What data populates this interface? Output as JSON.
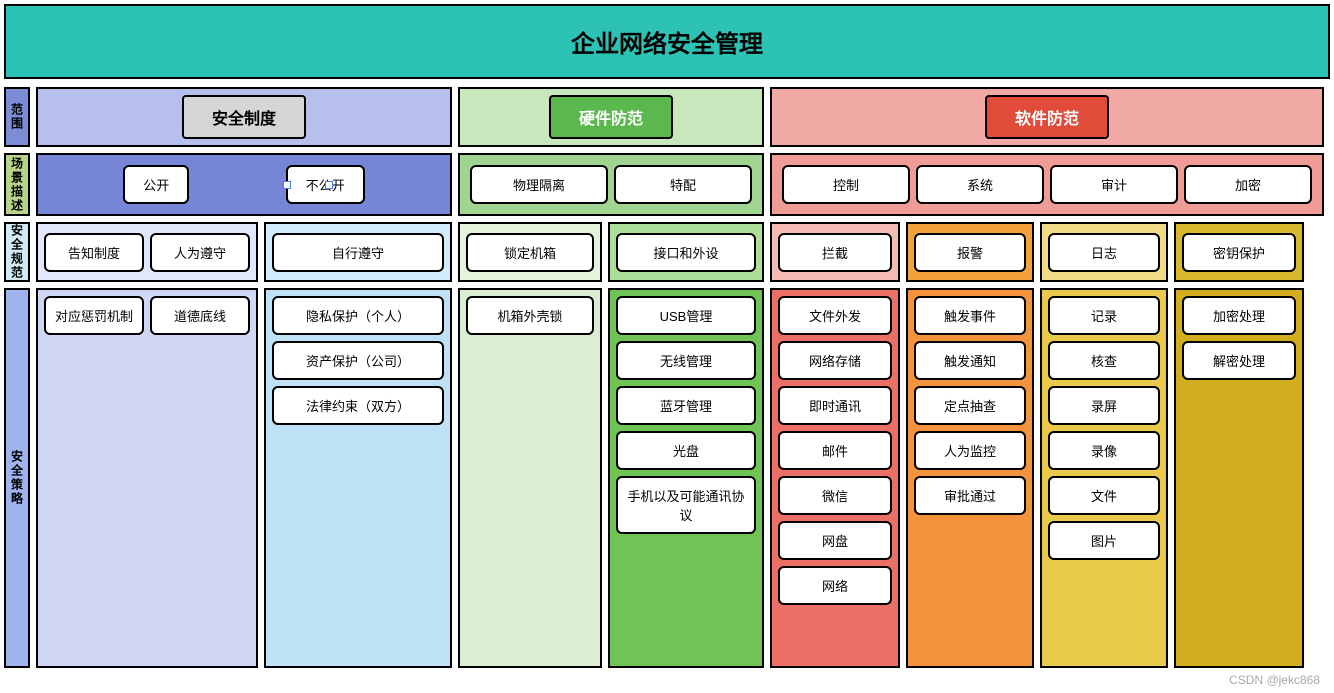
{
  "title": "企业网络安全管理",
  "watermark": "CSDN @jekc868",
  "colors": {
    "title_bg": "#2cc2b4",
    "side_scope": "#7c8dd6",
    "side_scene": "#b7d48a",
    "side_norm": "#d0e9f4",
    "side_strategy": "#9fb4ef",
    "policy_hdr_bg": "#d6d6d6",
    "policy_hdr_text": "#000000",
    "hw_hdr_bg": "#5bb84f",
    "hw_hdr_text": "#ffffff",
    "sw_hdr_bg": "#e04b3a",
    "sw_hdr_text": "#ffffff",
    "policy_light": "#b7c0ec",
    "hw_light": "#c9e7bd",
    "sw_light": "#f0a9a4",
    "policy_scene": "#7785d6",
    "hw_scene": "#9fd590",
    "sw_scene": "#ee9c95",
    "norm_p1": "#e2e7fb",
    "norm_p2": "#d2ecfb",
    "norm_h1": "#e4f3dc",
    "norm_h2": "#aedf9a",
    "norm_s1": "#f4bbb4",
    "norm_s2": "#f4a13b",
    "norm_s3": "#f0dc85",
    "norm_s4": "#d8b92d",
    "strat_p1": "#cfd7f5",
    "strat_p2": "#bfe1f5",
    "strat_h1": "#dbeed1",
    "strat_h2": "#6fc455",
    "strat_s1": "#ea6f66",
    "strat_s2": "#f3933b",
    "strat_s3": "#e9ca4a",
    "strat_s4": "#d2ae1f"
  },
  "rows": {
    "scope": {
      "label": "范围",
      "policy": {
        "header": "安全制度"
      },
      "hardware": {
        "header": "硬件防范"
      },
      "software": {
        "header": "软件防范"
      }
    },
    "scene": {
      "label": "场景描述",
      "policy": [
        "公开",
        "不公开"
      ],
      "hardware": [
        "物理隔离",
        "特配"
      ],
      "software": [
        "控制",
        "系统",
        "审计",
        "加密"
      ]
    },
    "norm": {
      "label": "安全规范",
      "policy": [
        {
          "items": [
            "告知制度",
            "人为遵守"
          ]
        },
        {
          "items": [
            "自行遵守"
          ]
        }
      ],
      "hardware": [
        {
          "items": [
            "锁定机箱"
          ]
        },
        {
          "items": [
            "接口和外设"
          ]
        }
      ],
      "software": [
        {
          "items": [
            "拦截"
          ]
        },
        {
          "items": [
            "报警"
          ]
        },
        {
          "items": [
            "日志"
          ]
        },
        {
          "items": [
            "密钥保护"
          ]
        }
      ]
    },
    "strategy": {
      "label": "安全策略",
      "policy": [
        [
          "对应惩罚机制",
          "道德底线"
        ],
        [
          "隐私保护（个人）",
          "资产保护（公司）",
          "法律约束（双方）"
        ]
      ],
      "hardware": [
        [
          "机箱外壳锁"
        ],
        [
          "USB管理",
          "无线管理",
          "蓝牙管理",
          "光盘",
          "手机以及可能通讯协议"
        ]
      ],
      "software": [
        [
          "文件外发",
          "网络存储",
          "即时通讯",
          "邮件",
          "微信",
          "网盘",
          "网络"
        ],
        [
          "触发事件",
          "触发通知",
          "定点抽查",
          "人为监控",
          "审批通过"
        ],
        [
          "记录",
          "核查",
          "录屏",
          "录像",
          "文件",
          "图片"
        ],
        [
          "加密处理",
          "解密处理"
        ]
      ]
    }
  },
  "widths": {
    "policy_block": 416,
    "hw_block": 306,
    "sw_block": 554,
    "policy_sub1": 222,
    "policy_sub2": 156,
    "hw_sub": 144,
    "sw_sub1": 130,
    "sw_sub2": 128,
    "sw_sub3": 128,
    "sw_sub4": 130,
    "strategy_height": 380
  }
}
